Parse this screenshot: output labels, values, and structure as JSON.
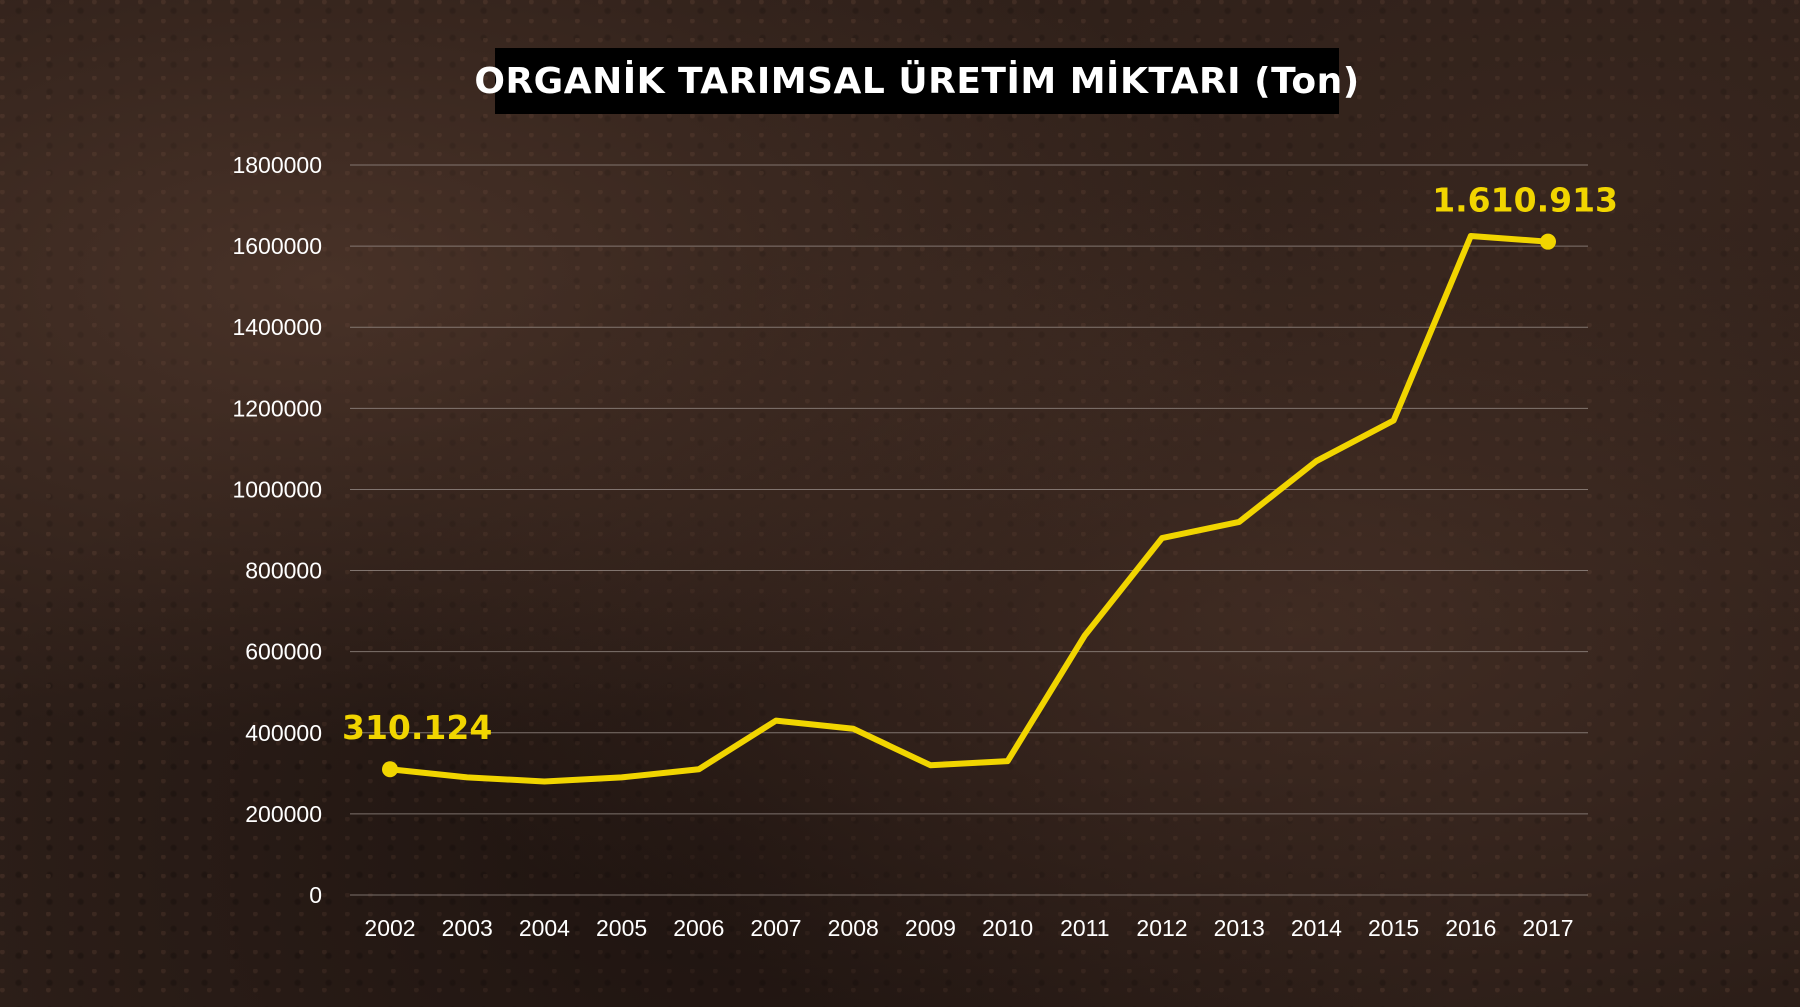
{
  "title": "ORGANİK TARIMSAL ÜRETİM MİKTARI (Ton)",
  "colors": {
    "line": "#f1d500",
    "grid": "#9a8f8a",
    "text": "#ffffff",
    "title_bg": "#000000"
  },
  "chart_data": {
    "type": "line",
    "title": "ORGANİK TARIMSAL ÜRETİM MİKTARI (Ton)",
    "xlabel": "",
    "ylabel": "",
    "ylim": [
      0,
      1800000
    ],
    "yticks": [
      "0",
      "200000",
      "400000",
      "600000",
      "800000",
      "1000000",
      "1200000",
      "1400000",
      "1600000",
      "1800000"
    ],
    "grid": true,
    "categories": [
      "2002",
      "2003",
      "2004",
      "2005",
      "2006",
      "2007",
      "2008",
      "2009",
      "2010",
      "2011",
      "2012",
      "2013",
      "2014",
      "2015",
      "2016",
      "2017"
    ],
    "series": [
      {
        "values": [
          310124,
          290000,
          280000,
          290000,
          310000,
          430000,
          410000,
          320000,
          330000,
          640000,
          880000,
          920000,
          1070000,
          1170000,
          1625000,
          1610913
        ]
      }
    ],
    "annotations": [
      {
        "index": 0,
        "text": "310.124"
      },
      {
        "index": 15,
        "text": "1.610.913"
      }
    ]
  }
}
